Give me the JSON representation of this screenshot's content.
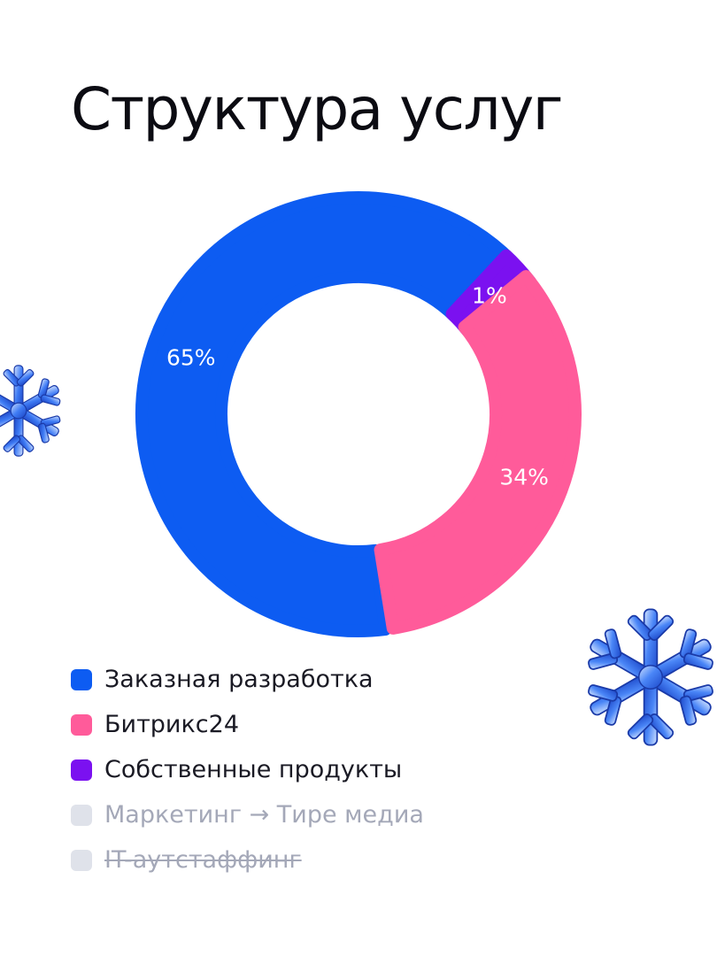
{
  "title": "Структура услуг",
  "chart_data": {
    "type": "pie",
    "title": "Структура услуг",
    "slices": [
      {
        "label": "Заказная разработка",
        "value": 65,
        "value_label": "65%",
        "color": "#0d5cf2"
      },
      {
        "label": "Собственные продукты",
        "value": 1,
        "value_label": "1%",
        "color": "#7b11f0"
      },
      {
        "label": "Битрикс24",
        "value": 34,
        "value_label": "34%",
        "color": "#ff5b9a"
      }
    ]
  },
  "legend": [
    {
      "label": "Заказная разработка",
      "color": "#0d5cf2",
      "muted": false,
      "struck": false
    },
    {
      "label": "Битрикс24",
      "color": "#ff5b9a",
      "muted": false,
      "struck": false
    },
    {
      "label": "Собственные продукты",
      "color": "#7b11f0",
      "muted": false,
      "struck": false
    },
    {
      "label": "Маркетинг → Тире медиа",
      "color": "#dfe2ea",
      "muted": true,
      "struck": false
    },
    {
      "label": "IT-аутстаффинг",
      "color": "#dfe2ea",
      "muted": true,
      "struck": true
    }
  ],
  "decorations": [
    "snowflake-icon",
    "snowflake-icon"
  ]
}
